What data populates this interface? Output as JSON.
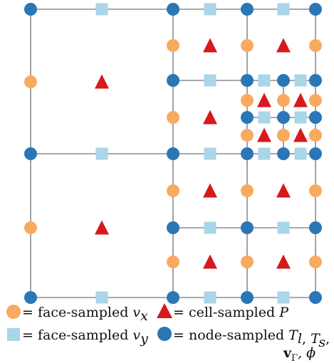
{
  "colors": {
    "grid_line": "#8c8c8c",
    "face_x": "#f9aa5f",
    "face_y": "#a9d6e8",
    "cell": "#d7191c",
    "node": "#2b76b5"
  },
  "legend": [
    {
      "key": "face-x",
      "marker": "circle-orange",
      "text": "= face-sampled v",
      "sub": "x"
    },
    {
      "key": "cell",
      "marker": "triangle-red",
      "text": "= cell-sampled P",
      "sub": ""
    },
    {
      "key": "face-y",
      "marker": "square-lightblue",
      "text": "= face-sampled v",
      "sub": "y"
    },
    {
      "key": "node",
      "marker": "circle-blue",
      "text": "= node-sampled T",
      "sub": "l",
      "extra": ", T",
      "extra_sub": "s",
      "extra_tail": ",",
      "line2": "v",
      "line2_sub": "Γ",
      "line2_tail": ", ϕ"
    }
  ]
}
